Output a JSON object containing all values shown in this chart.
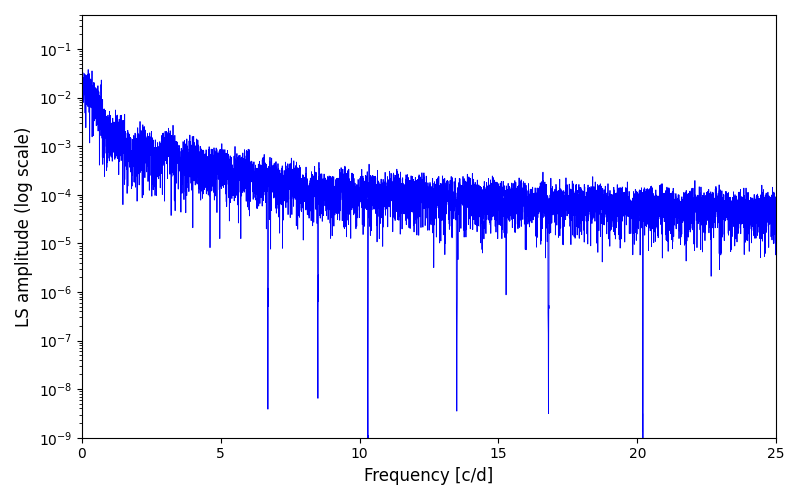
{
  "xlabel": "Frequency [c/d]",
  "ylabel": "LS amplitude (log scale)",
  "line_color": "#0000ff",
  "xlim": [
    0,
    25
  ],
  "ylim": [
    1e-09,
    0.5
  ],
  "xmin": 0.0,
  "xmax": 25.0,
  "n_points": 8000,
  "seed": 123,
  "figsize": [
    8.0,
    5.0
  ],
  "dpi": 100,
  "background_color": "#ffffff",
  "linewidth": 0.6
}
